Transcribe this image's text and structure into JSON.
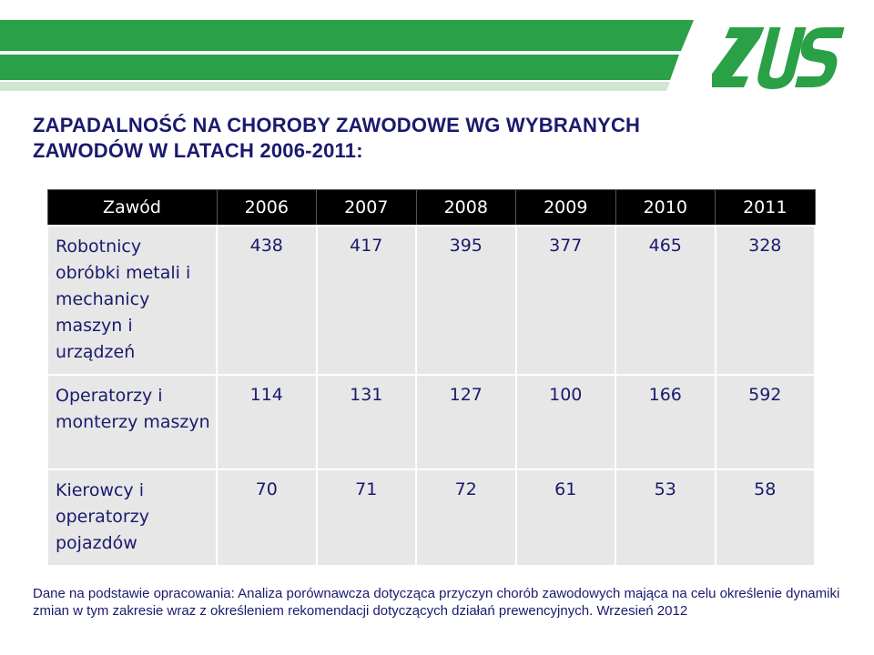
{
  "title": {
    "line1": "ZAPADALNOŚĆ  NA  CHOROBY  ZAWODOWE  WG  WYBRANYCH",
    "line2": "ZAWODÓW  W  LATACH  2006-2011:"
  },
  "logo": {
    "text": "ZUS",
    "color": "#2aa047"
  },
  "colors": {
    "band": "#2aa047",
    "band_light": "#cfe6d2",
    "text": "#1a1a6e"
  },
  "table": {
    "headers": [
      "Zawód",
      "2006",
      "2007",
      "2008",
      "2009",
      "2010",
      "2011"
    ],
    "rows": [
      {
        "label": "Robotnicy obróbki metali i mechanicy maszyn i urządzeń",
        "values": [
          "438",
          "417",
          "395",
          "377",
          "465",
          "328"
        ]
      },
      {
        "label": "Operatorzy i monterzy maszyn",
        "values": [
          "114",
          "131",
          "127",
          "100",
          "166",
          "592"
        ]
      },
      {
        "label": "Kierowcy i operatorzy pojazdów",
        "values": [
          "70",
          "71",
          "72",
          "61",
          "53",
          "58"
        ]
      }
    ]
  },
  "source": "Dane na podstawie opracowania: Analiza porównawcza dotycząca przyczyn chorób zawodowych mająca na celu określenie dynamiki zmian w tym zakresie wraz z określeniem rekomendacji dotyczących działań prewencyjnych. Wrzesień 2012"
}
